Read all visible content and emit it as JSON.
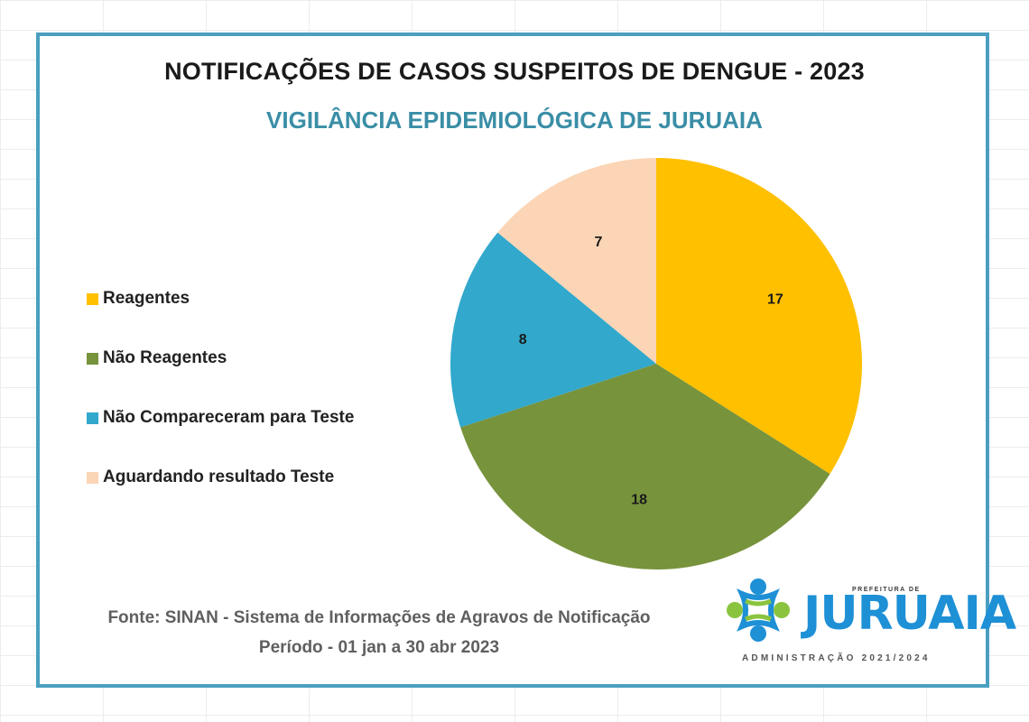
{
  "chart_data": {
    "type": "pie",
    "title": "NOTIFICAÇÕES DE CASOS SUSPEITOS DE DENGUE - 2023",
    "subtitle": "VIGILÂNCIA EPIDEMIOLÓGICA DE JURUAIA",
    "legend_position": "left",
    "series": [
      {
        "name": "Reagentes",
        "value": 17,
        "color": "#ffc000"
      },
      {
        "name": "Não Reagentes",
        "value": 18,
        "color": "#77933c"
      },
      {
        "name": "Não Compareceram para Teste",
        "value": 8,
        "color": "#31a8cc"
      },
      {
        "name": "Aguardando resultado Teste",
        "value": 7,
        "color": "#fbd5b5"
      }
    ]
  },
  "footer": {
    "source": "Fonte: SINAN - Sistema de Informações de Agravos de Notificação",
    "period": "Período - 01 jan a 30 abr 2023"
  },
  "logo": {
    "top_text": "PREFEITURA DE",
    "word": "JURUAIA",
    "admin_text": "ADMINISTRAÇÃO 2021/2024",
    "colors": {
      "blue": "#1e90d6",
      "green": "#8ac43f"
    }
  }
}
